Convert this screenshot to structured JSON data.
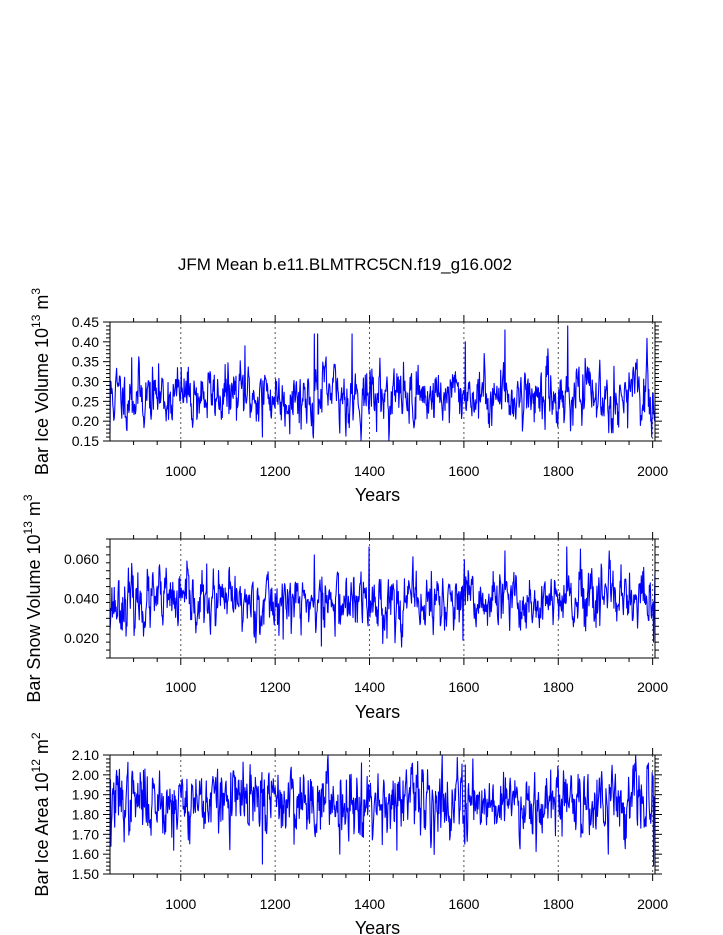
{
  "title": "JFM Mean b.e11.BLMTRC5CN.f19_g16.002",
  "colors": {
    "series": "#0000ff",
    "axis": "#000000",
    "gridline": "#555555",
    "background": "#ffffff"
  },
  "chart_data": [
    {
      "type": "line",
      "id": "ice-volume",
      "ylabel_main": "Bar Ice Volume 10",
      "ylabel_exp": "13",
      "ylabel_unit": "m",
      "ylabel_unit_exp": "3",
      "xlabel": "Years",
      "xlim": [
        850,
        2005
      ],
      "ylim": [
        0.15,
        0.45
      ],
      "xticks": [
        1000,
        1200,
        1400,
        1600,
        1800,
        2000
      ],
      "xtick_labels": [
        "1000",
        "1200",
        "1400",
        "1600",
        "1800",
        "2000"
      ],
      "yticks": [
        0.15,
        0.2,
        0.25,
        0.3,
        0.35,
        0.4,
        0.45
      ],
      "ytick_labels": [
        "0.15",
        "0.20",
        "0.25",
        "0.30",
        "0.35",
        "0.40",
        "0.45"
      ],
      "grid": "vertical-dotted",
      "series_params": {
        "mean": 0.265,
        "std": 0.038,
        "lag1": 0.55,
        "seed": 11
      },
      "anchors": [
        [
          850,
          0.17
        ],
        [
          896,
          0.36
        ],
        [
          1136,
          0.39
        ],
        [
          1173,
          0.16
        ],
        [
          1283,
          0.42
        ],
        [
          1290,
          0.42
        ],
        [
          1337,
          0.17
        ],
        [
          1363,
          0.42
        ],
        [
          1603,
          0.4
        ],
        [
          1687,
          0.43
        ],
        [
          1820,
          0.44
        ],
        [
          1998,
          0.16
        ]
      ],
      "series": [
        {
          "name": "Bar Ice Volume",
          "x_start": 850,
          "x_end": 2005
        }
      ]
    },
    {
      "type": "line",
      "id": "snow-volume",
      "ylabel_main": "Bar Snow Volume 10",
      "ylabel_exp": "13",
      "ylabel_unit": "m",
      "ylabel_unit_exp": "3",
      "xlabel": "Years",
      "xlim": [
        850,
        2005
      ],
      "ylim": [
        0.01,
        0.07
      ],
      "xticks": [
        1000,
        1200,
        1400,
        1600,
        1800,
        2000
      ],
      "xtick_labels": [
        "1000",
        "1200",
        "1400",
        "1600",
        "1800",
        "2000"
      ],
      "yticks": [
        0.02,
        0.04,
        0.06
      ],
      "ytick_labels": [
        "0.020",
        "0.040",
        "0.060"
      ],
      "grid": "vertical-dotted",
      "series_params": {
        "mean": 0.038,
        "std": 0.0075,
        "lag1": 0.5,
        "seed": 23
      },
      "anchors": [
        [
          850,
          0.024
        ],
        [
          955,
          0.057
        ],
        [
          1283,
          0.062
        ],
        [
          1298,
          0.016
        ],
        [
          1399,
          0.066
        ],
        [
          1598,
          0.019
        ],
        [
          1687,
          0.064
        ],
        [
          1818,
          0.066
        ],
        [
          2002,
          0.018
        ]
      ],
      "series": [
        {
          "name": "Bar Snow Volume",
          "x_start": 850,
          "x_end": 2005
        }
      ]
    },
    {
      "type": "line",
      "id": "ice-area",
      "ylabel_main": "Bar Ice Area 10",
      "ylabel_exp": "12",
      "ylabel_unit": "m",
      "ylabel_unit_exp": "2",
      "xlabel": "Years",
      "xlim": [
        850,
        2005
      ],
      "ylim": [
        1.5,
        2.1
      ],
      "xticks": [
        1000,
        1200,
        1400,
        1600,
        1800,
        2000
      ],
      "xtick_labels": [
        "1000",
        "1200",
        "1400",
        "1600",
        "1800",
        "2000"
      ],
      "yticks": [
        1.5,
        1.6,
        1.7,
        1.8,
        1.9,
        2.0,
        2.1
      ],
      "ytick_labels": [
        "1.50",
        "1.60",
        "1.70",
        "1.80",
        "1.90",
        "2.00",
        "2.10"
      ],
      "grid": "vertical-dotted",
      "series_params": {
        "mean": 1.87,
        "std": 0.085,
        "lag1": 0.45,
        "seed": 37
      },
      "anchors": [
        [
          852,
          1.64
        ],
        [
          955,
          2.02
        ],
        [
          985,
          1.62
        ],
        [
          1173,
          1.55
        ],
        [
          1337,
          1.6
        ],
        [
          1383,
          2.06
        ],
        [
          1458,
          1.62
        ],
        [
          1603,
          2.05
        ],
        [
          1906,
          1.6
        ],
        [
          2002,
          1.54
        ]
      ],
      "series": [
        {
          "name": "Bar Ice Area",
          "x_start": 850,
          "x_end": 2005
        }
      ]
    }
  ]
}
